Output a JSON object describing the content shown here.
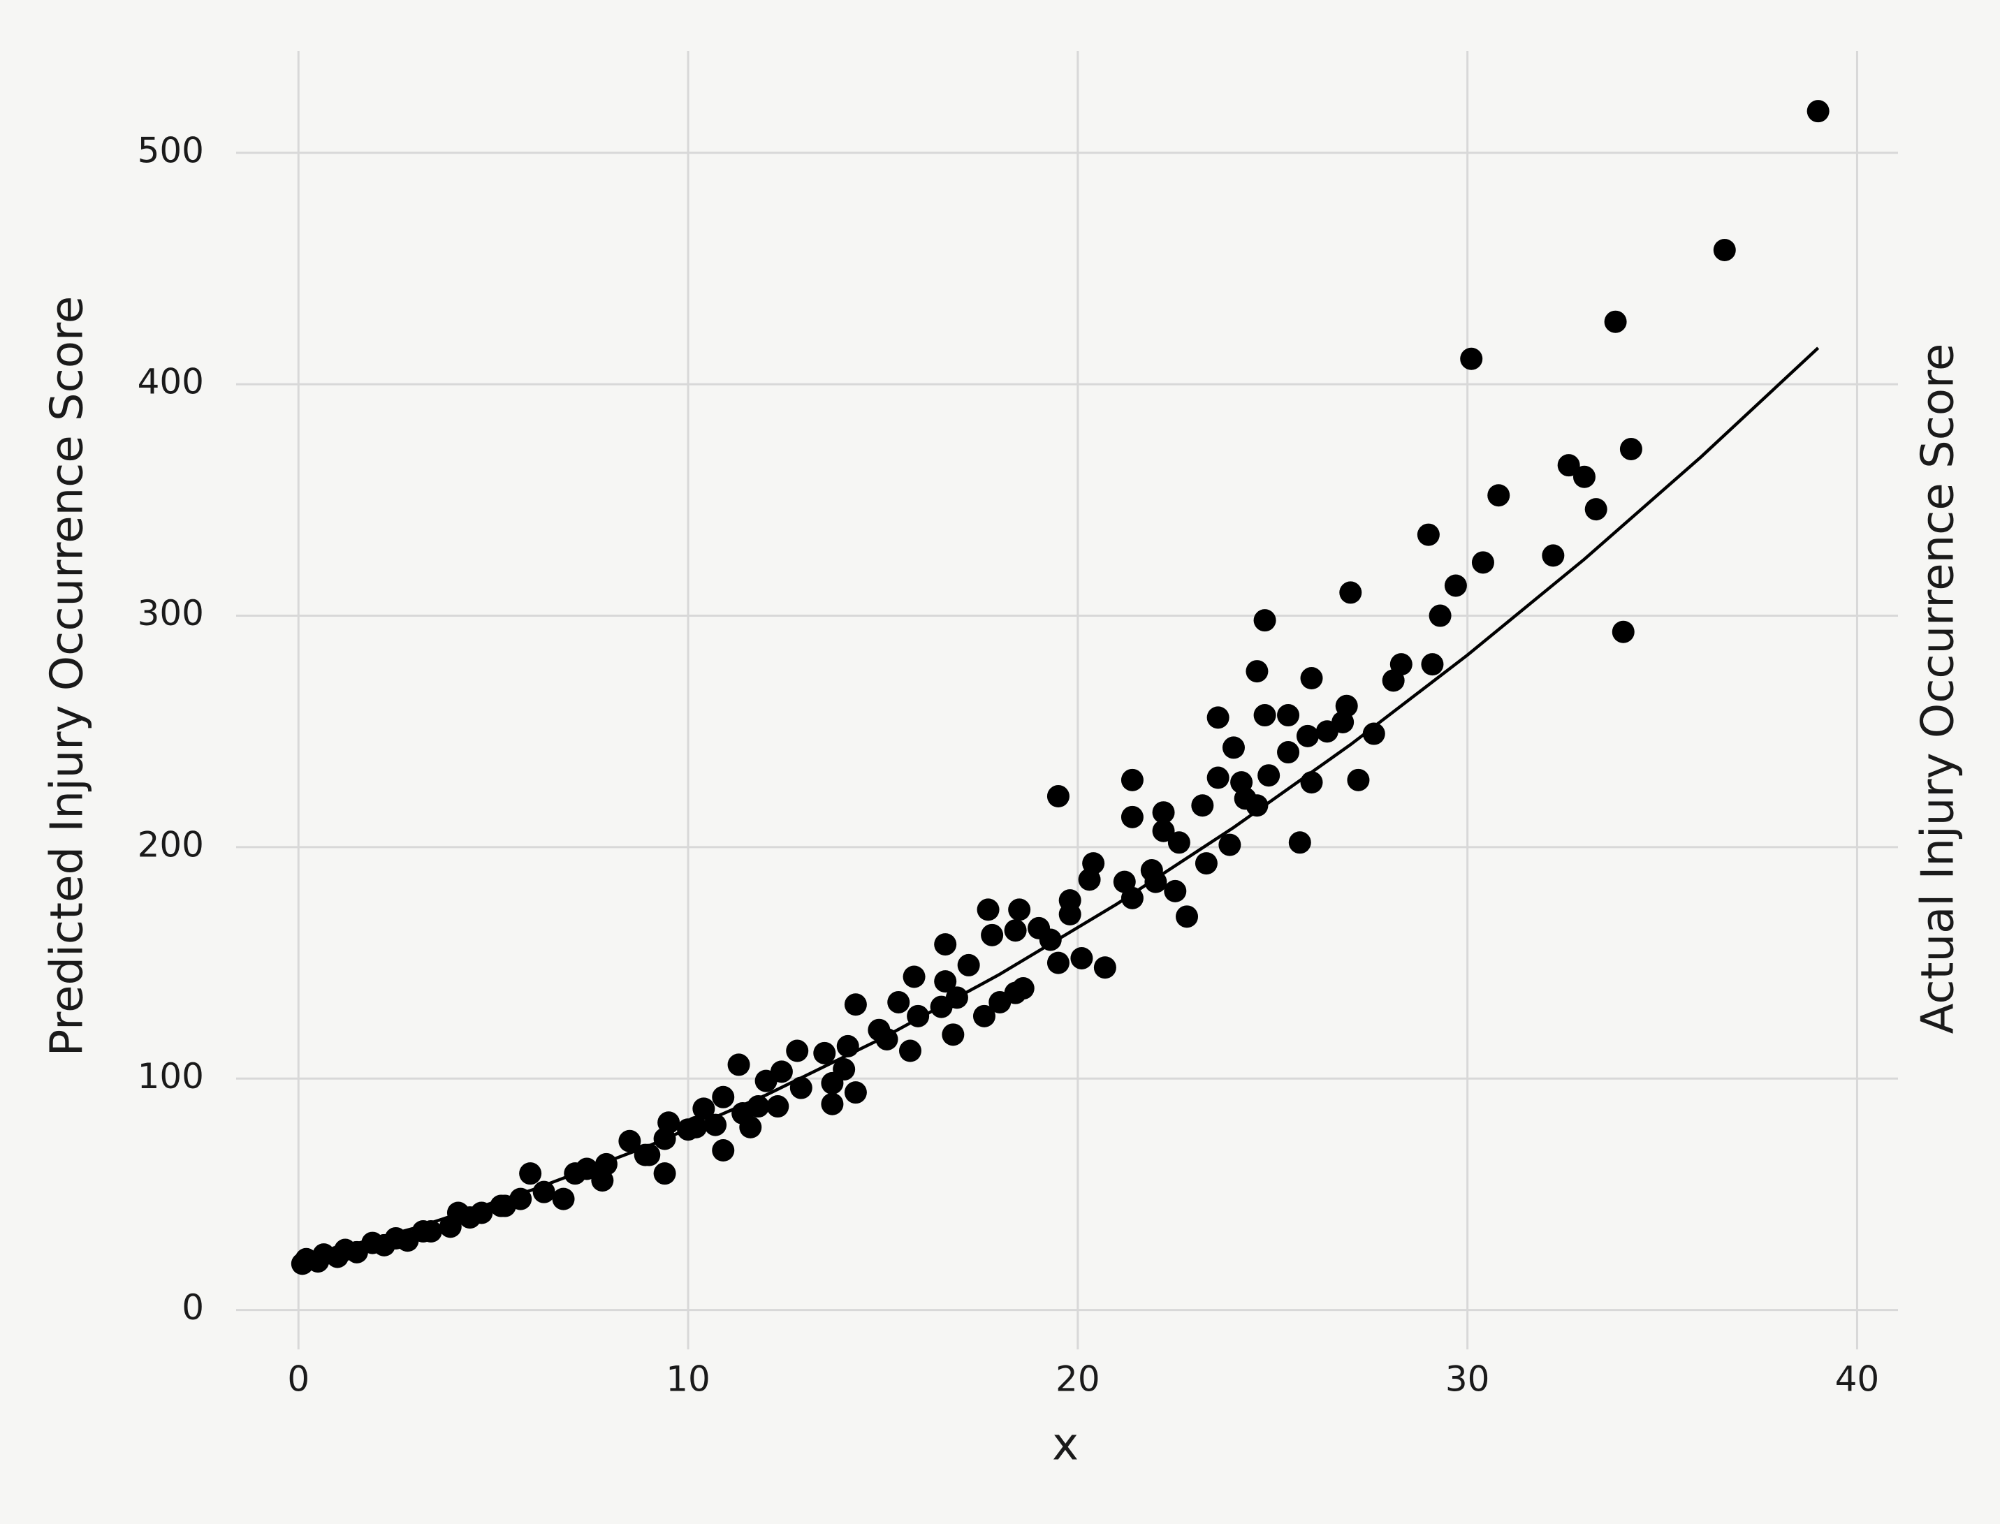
{
  "chart_data": {
    "type": "scatter",
    "xlabel": "x",
    "ylabel": "Predicted Injury Occurrence Score",
    "y2label": "Actual Injury Occurrence Score",
    "xlim": [
      -1.6,
      41.05
    ],
    "ylim": [
      -17,
      544
    ],
    "xticks": [
      0,
      10,
      20,
      30,
      40
    ],
    "yticks": [
      0,
      100,
      200,
      300,
      400,
      500
    ],
    "grid": true,
    "series": [
      {
        "type": "scatter",
        "color": "#000000",
        "x": [
          39.0,
          36.6,
          33.8,
          30.1,
          34.2,
          32.6,
          33.0,
          30.8,
          33.3,
          29.0,
          32.2,
          30.4,
          29.7,
          29.3,
          34.0,
          24.8,
          27.0,
          29.1,
          28.3,
          28.1,
          26.0,
          24.6,
          26.9,
          25.4,
          24.8,
          23.6,
          26.8,
          26.4,
          27.6,
          25.9,
          25.4,
          24.0,
          23.6,
          24.9,
          24.2,
          26.0,
          27.2,
          21.4,
          23.2,
          24.3,
          24.6,
          19.5,
          21.4,
          22.2,
          22.2,
          22.6,
          23.9,
          25.7,
          20.4,
          20.3,
          21.2,
          21.9,
          22.0,
          22.5,
          21.4,
          23.3,
          22.8,
          19.8,
          19.8,
          17.7,
          18.5,
          17.8,
          18.4,
          19.0,
          19.3,
          19.5,
          20.1,
          20.7,
          16.6,
          17.2,
          15.8,
          16.6,
          16.9,
          16.5,
          17.6,
          18.0,
          18.6,
          18.4,
          15.4,
          15.9,
          16.8,
          14.3,
          15.7,
          14.9,
          15.1,
          14.1,
          13.5,
          12.8,
          14.0,
          12.4,
          13.7,
          14.3,
          13.7,
          12.0,
          12.9,
          11.3,
          12.3,
          11.4,
          11.6,
          10.9,
          10.4,
          10.7,
          10.9,
          10.0,
          9.5,
          9.4,
          9.0,
          9.4,
          8.5,
          7.9,
          7.4,
          7.1,
          5.95,
          6.8,
          6.3,
          5.7,
          5.2,
          4.7,
          4.1,
          3.9,
          3.4,
          2.8,
          2.2,
          1.5,
          1.0,
          0.5,
          0.1,
          0.2,
          2.5,
          1.9,
          1.2,
          0.65,
          3.2,
          4.4,
          5.3,
          7.8,
          8.9,
          10.2,
          11.8
        ],
        "values": [
          518,
          458,
          427,
          411,
          372,
          365,
          360,
          352,
          346,
          335,
          326,
          323,
          313,
          300,
          293,
          298,
          310,
          279,
          279,
          272,
          273,
          276,
          261,
          257,
          257,
          256,
          254,
          250,
          249,
          248,
          241,
          243,
          230,
          231,
          228,
          228,
          229,
          229,
          218,
          221,
          218,
          222,
          213,
          215,
          207,
          202,
          201,
          202,
          193,
          186,
          185,
          190,
          185,
          181,
          178,
          193,
          170,
          177,
          171,
          173,
          173,
          162,
          164,
          165,
          160,
          150,
          152,
          148,
          158,
          149,
          144,
          142,
          135,
          131,
          127,
          133,
          139,
          137,
          133,
          127,
          119,
          132,
          112,
          121,
          117,
          114,
          111,
          112,
          104,
          103,
          98,
          94,
          89,
          99,
          96,
          106,
          88,
          85,
          79,
          92,
          87,
          80,
          69,
          78,
          81,
          74,
          67,
          59,
          73,
          63,
          61,
          59,
          59,
          48,
          51,
          48,
          45,
          42,
          42,
          36,
          34,
          30,
          28,
          25,
          23,
          21,
          20,
          22,
          31,
          29,
          26,
          24,
          34,
          40,
          45,
          56,
          67,
          79,
          88
        ]
      },
      {
        "type": "line",
        "color": "#000000",
        "x": [
          0,
          3,
          6,
          9,
          12,
          15,
          18,
          21,
          24,
          27,
          30,
          33,
          36,
          39
        ],
        "values": [
          22,
          35.5,
          51.9,
          71.0,
          92.9,
          117.6,
          145.1,
          175.4,
          208.5,
          244.3,
          283.0,
          324.4,
          368.7,
          415.7
        ]
      }
    ]
  }
}
